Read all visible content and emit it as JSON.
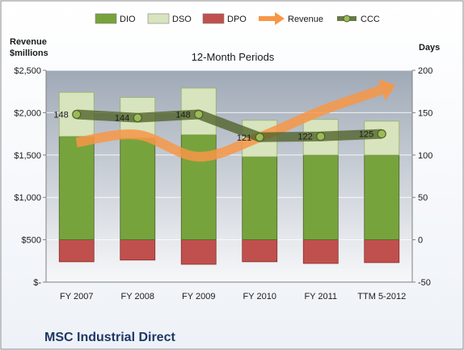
{
  "chart_data": {
    "type": "bar",
    "title": "",
    "subtitle": "12-Month Periods",
    "company": "MSC Industrial Direct",
    "categories": [
      "FY 2007",
      "FY 2008",
      "FY 2009",
      "FY 2010",
      "FY 2011",
      "TTM 5-2012"
    ],
    "left_axis": {
      "label_line1": "Revenue",
      "label_line2": "$millions",
      "range": [
        0,
        2500
      ],
      "ticks": [
        0,
        500,
        1000,
        1500,
        2000,
        2500
      ],
      "tick_labels": [
        "$-",
        "$500",
        "$1,000",
        "$1,500",
        "$2,000",
        "$2,500"
      ]
    },
    "right_axis": {
      "label": "Days",
      "range": [
        -50,
        200
      ],
      "ticks": [
        -50,
        0,
        50,
        100,
        150,
        200
      ],
      "tick_labels": [
        "-50",
        "0",
        "50",
        "100",
        "150",
        "200"
      ]
    },
    "series": [
      {
        "name": "DIO",
        "axis": "days",
        "kind": "stacked-bar",
        "color": "#77a33d",
        "values": [
          122,
          120,
          124,
          98,
          100,
          100
        ]
      },
      {
        "name": "DSO",
        "axis": "days",
        "kind": "stacked-bar",
        "color": "#d7e4bd",
        "values": [
          52,
          48,
          55,
          43,
          42,
          40
        ]
      },
      {
        "name": "DPO",
        "axis": "days",
        "kind": "negative-bar",
        "color": "#c0504d",
        "values": [
          -26,
          -24,
          -29,
          -26,
          -28,
          -27
        ]
      },
      {
        "name": "Revenue",
        "axis": "revenue",
        "kind": "arrow-line",
        "color": "#f79646",
        "values": [
          1650,
          1740,
          1480,
          1710,
          2020,
          2270
        ]
      },
      {
        "name": "CCC",
        "axis": "days",
        "kind": "line-markers",
        "color": "#4f6228",
        "values": [
          148,
          144,
          148,
          121,
          122,
          125
        ],
        "data_labels": [
          "148",
          "144",
          "148",
          "121",
          "122",
          "125"
        ]
      }
    ],
    "grid": true,
    "legend_position": "top"
  }
}
